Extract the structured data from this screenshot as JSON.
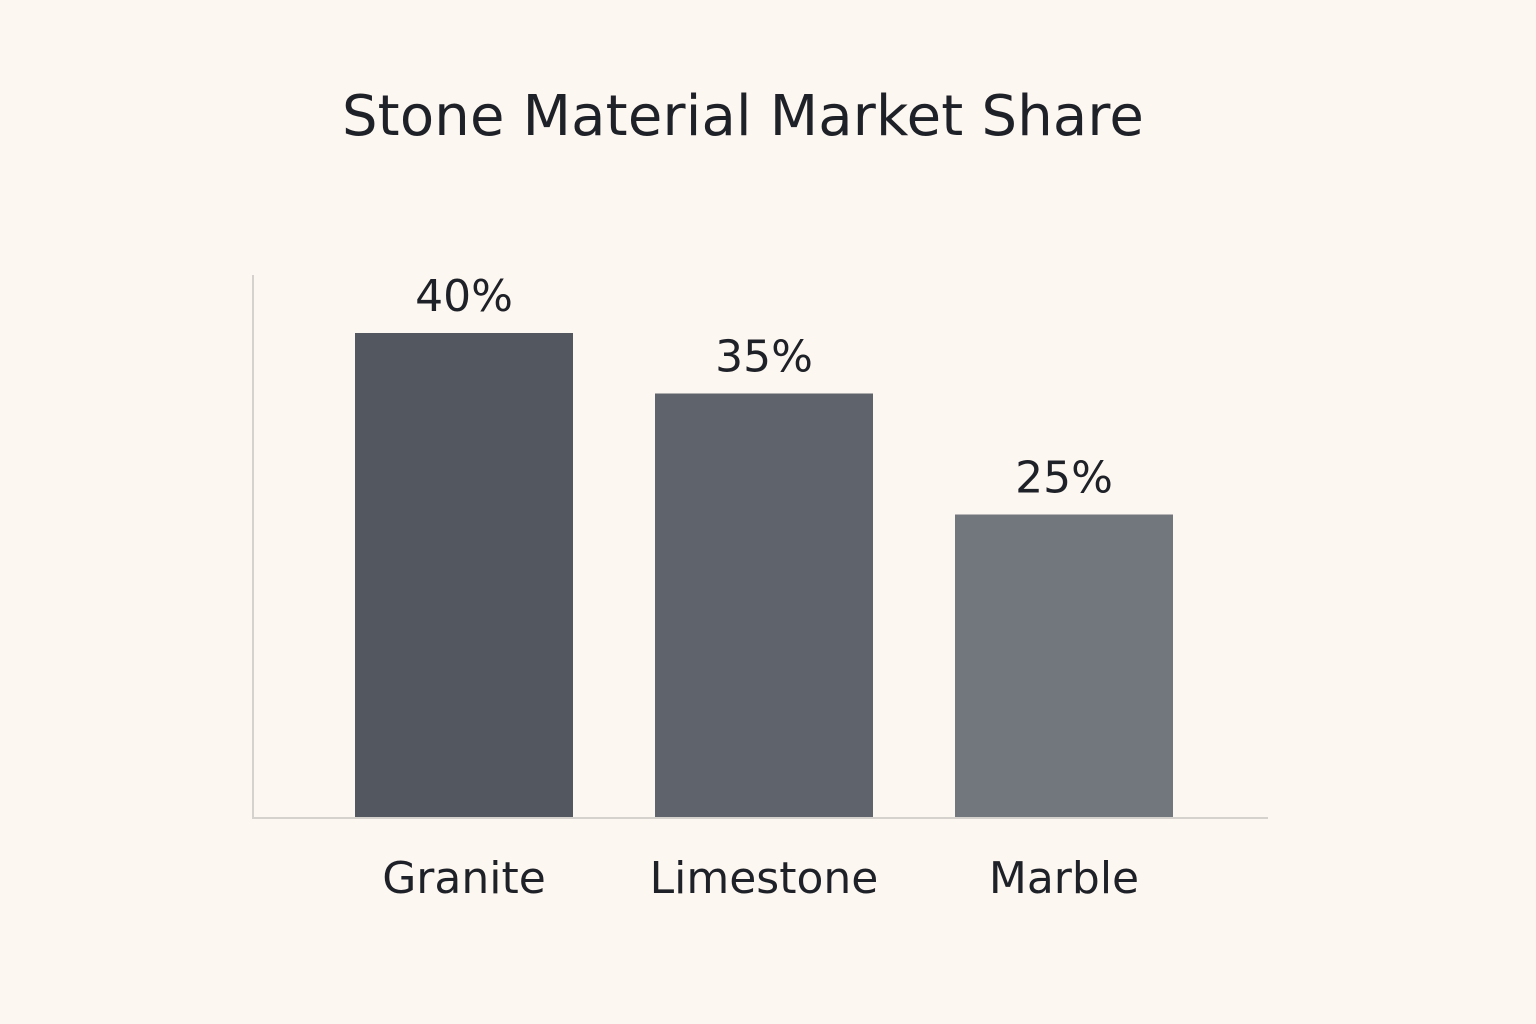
{
  "chart_data": {
    "type": "bar",
    "title": "Stone Material Market Share",
    "xlabel": "",
    "ylabel": "",
    "categories": [
      "Granite",
      "Limestone",
      "Marble"
    ],
    "values": [
      40,
      35,
      25
    ],
    "value_labels": [
      "40%",
      "35%",
      "25%"
    ],
    "ylim": [
      0,
      45
    ],
    "grid": false,
    "legend": "none",
    "bar_colors": [
      "#535860",
      "#5f636b",
      "#72767d"
    ],
    "axis_color": "#d5d2ce"
  }
}
